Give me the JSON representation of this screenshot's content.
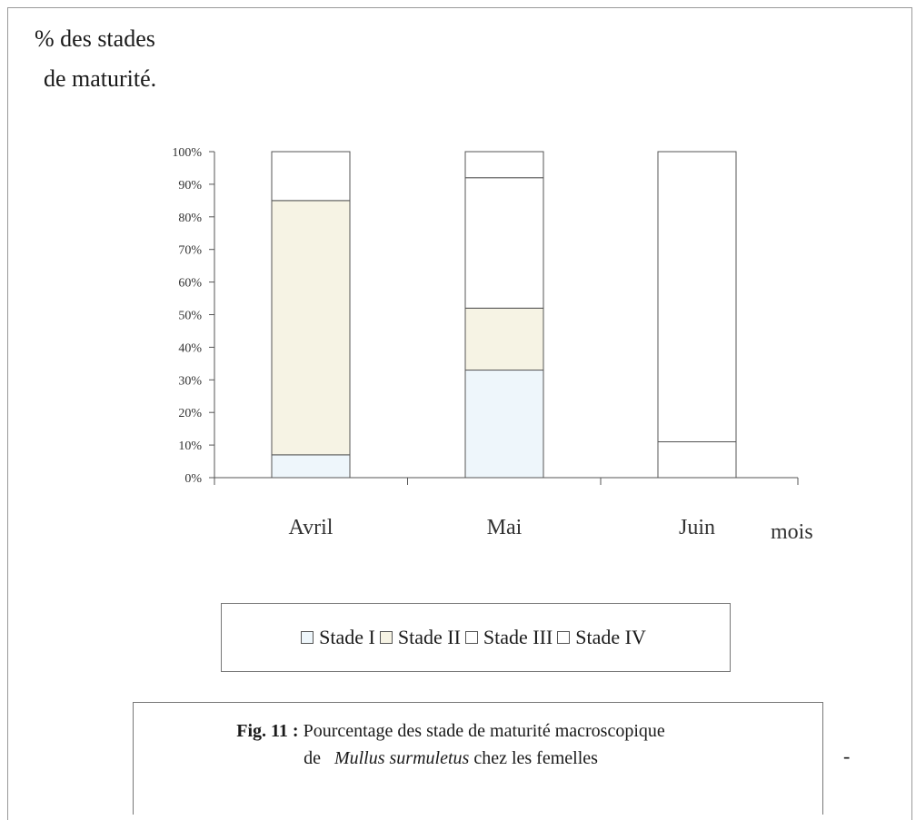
{
  "chart_data": {
    "type": "bar",
    "stacked": true,
    "percent": true,
    "ylabel": [
      "% des stades",
      "de maturité."
    ],
    "xlabel": "mois",
    "categories": [
      "Avril",
      "Mai",
      "Juin"
    ],
    "yticks": [
      "0%",
      "10%",
      "20%",
      "30%",
      "40%",
      "50%",
      "60%",
      "70%",
      "80%",
      "90%",
      "100%"
    ],
    "ylim": [
      0,
      100
    ],
    "series": [
      {
        "name": "Stade I",
        "color": "#eef6fb",
        "values": [
          7,
          33,
          0
        ]
      },
      {
        "name": "Stade II",
        "color": "#f6f3e4",
        "values": [
          78,
          19,
          0
        ]
      },
      {
        "name": "Stade III",
        "color": "#ffffff",
        "values": [
          0,
          40,
          11
        ]
      },
      {
        "name": "Stade IV",
        "color": "#ffffff",
        "values": [
          15,
          8,
          89
        ]
      }
    ],
    "grid": false,
    "legend_position": "bottom"
  },
  "caption": {
    "fig_label": "Fig. 11 :",
    "line1": "Pourcentage des stade de maturité macroscopique",
    "line2_prefix": "de",
    "species": "Mullus surmuletus",
    "line2_suffix": "chez les femelles"
  },
  "stray_mark": "-"
}
